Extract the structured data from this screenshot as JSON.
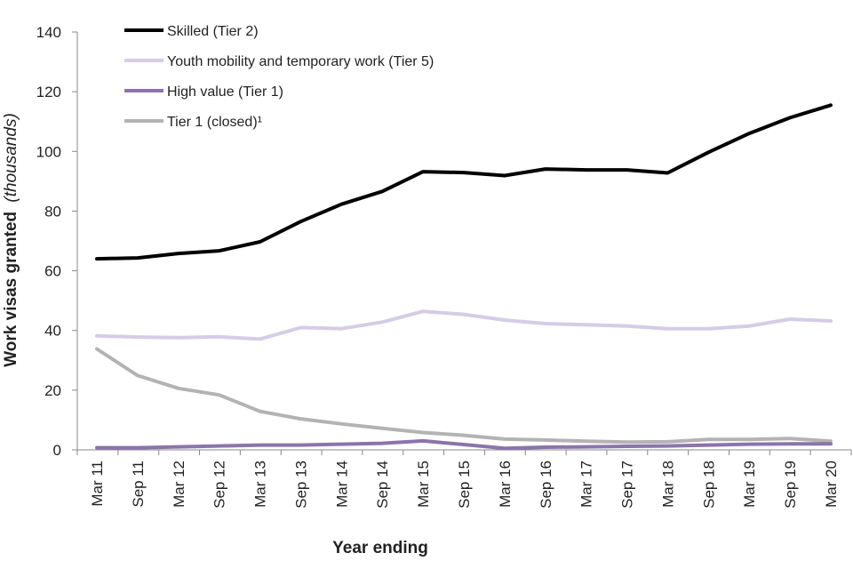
{
  "chart_data": {
    "type": "line",
    "xlabel": "Year ending",
    "ylabel": "Work visas granted",
    "ylabel_unit": "(thousands)",
    "ylim": [
      0,
      140
    ],
    "yticks": [
      0,
      20,
      40,
      60,
      80,
      100,
      120,
      140
    ],
    "grid": false,
    "legend_position": "top-left",
    "categories": [
      "Mar 11",
      "Sep 11",
      "Mar 12",
      "Sep 12",
      "Mar 13",
      "Sep 13",
      "Mar 14",
      "Sep 14",
      "Mar 15",
      "Sep 15",
      "Mar 16",
      "Sep 16",
      "Mar 17",
      "Sep 17",
      "Mar 18",
      "Sep 18",
      "Mar 19",
      "Sep 19",
      "Mar 20"
    ],
    "series": [
      {
        "name": "Skilled (Tier 2)",
        "color": "#000000",
        "values": [
          64.0,
          64.3,
          65.8,
          66.7,
          69.7,
          76.5,
          82.3,
          86.6,
          93.2,
          92.9,
          91.9,
          94.1,
          93.8,
          93.8,
          92.8,
          99.7,
          106.0,
          111.3,
          115.5
        ]
      },
      {
        "name": "Youth mobility and temporary work (Tier 5)",
        "color": "#d5cde6",
        "values": [
          38.2,
          37.8,
          37.6,
          37.9,
          37.1,
          41.0,
          40.6,
          42.8,
          46.4,
          45.4,
          43.5,
          42.3,
          41.9,
          41.5,
          40.6,
          40.6,
          41.5,
          43.8,
          43.2
        ]
      },
      {
        "name": "High value (Tier 1)",
        "color": "#8b74ab",
        "values": [
          0.7,
          0.7,
          1.0,
          1.3,
          1.6,
          1.6,
          1.9,
          2.2,
          3.0,
          1.8,
          0.5,
          0.9,
          1.0,
          1.2,
          1.3,
          1.6,
          1.9,
          2.0,
          2.0
        ]
      },
      {
        "name": "Tier 1 (closed)¹",
        "color": "#b3b3b3",
        "values": [
          33.8,
          24.9,
          20.6,
          18.4,
          12.9,
          10.4,
          8.7,
          7.2,
          5.8,
          4.9,
          3.6,
          3.3,
          2.9,
          2.6,
          2.7,
          3.5,
          3.5,
          3.8,
          2.9
        ]
      }
    ]
  }
}
